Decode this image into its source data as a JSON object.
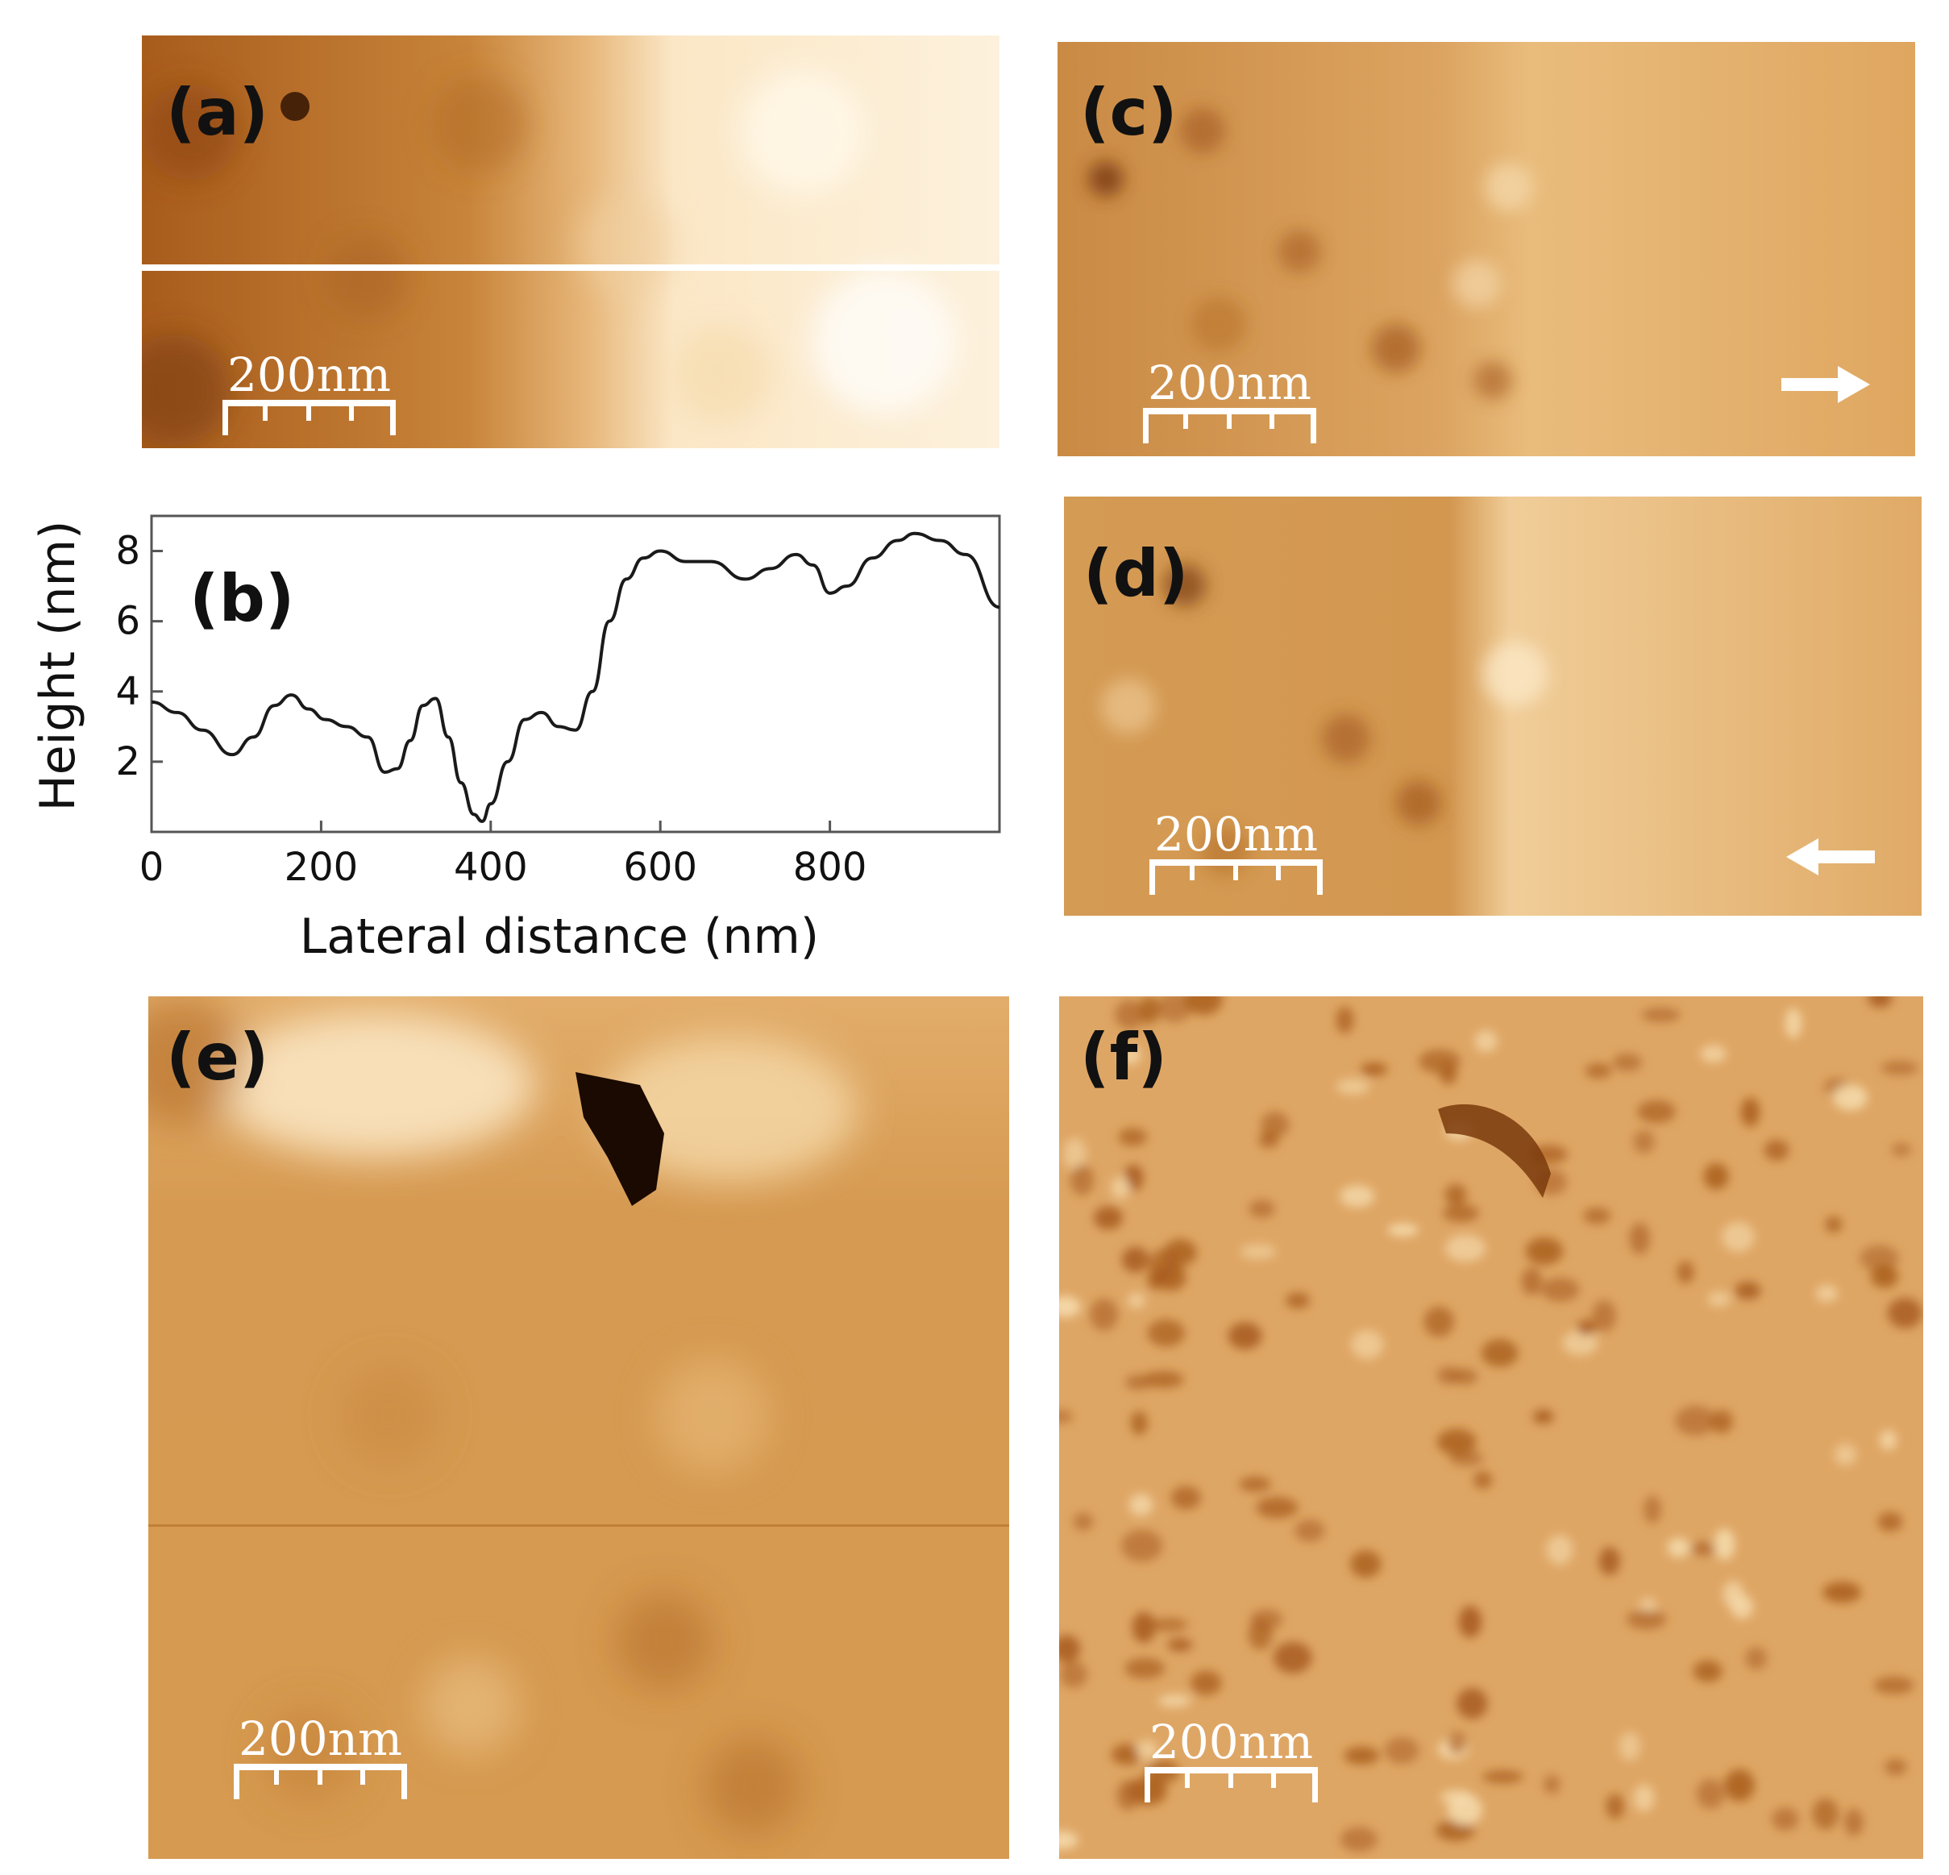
{
  "figure": {
    "panels": [
      {
        "id": "a",
        "label": "(a)",
        "kind": "AFM topography image, two stacked strips separated by a profile line",
        "scale_bar": "200nm"
      },
      {
        "id": "c",
        "label": "(c)",
        "kind": "AFM image, scan direction arrow right",
        "scale_bar": "200nm",
        "arrow": "right-arrow-icon"
      },
      {
        "id": "d",
        "label": "(d)",
        "kind": "AFM image, scan direction arrow left",
        "scale_bar": "200nm",
        "arrow": "left-arrow-icon"
      },
      {
        "id": "e",
        "label": "(e)",
        "kind": "AFM topography image",
        "scale_bar": "200nm"
      },
      {
        "id": "f",
        "label": "(f)",
        "kind": "AFM phase/friction image",
        "scale_bar": "200nm"
      }
    ],
    "colors": {
      "afm_dark": "#6e3206",
      "afm_mid": "#d49144",
      "afm_light": "#fdf3df",
      "arrow": "#ffffff"
    }
  },
  "chart_data": {
    "type": "line",
    "panel_label": "(b)",
    "title": "",
    "xlabel": "Lateral distance (nm)",
    "ylabel": "Height (nm)",
    "xlim": [
      0,
      1000
    ],
    "ylim": [
      0,
      9
    ],
    "xticks": [
      0,
      200,
      400,
      600,
      800
    ],
    "yticks": [
      2,
      4,
      6,
      8
    ],
    "grid": false,
    "legend": "none",
    "series": [
      {
        "x": [
          0,
          30,
          60,
          95,
          120,
          145,
          165,
          185,
          205,
          230,
          255,
          275,
          290,
          305,
          320,
          335,
          350,
          365,
          380,
          390,
          400,
          420,
          440,
          460,
          480,
          500,
          520,
          540,
          560,
          580,
          600,
          630,
          660,
          700,
          730,
          760,
          780,
          800,
          820,
          850,
          880,
          900,
          930,
          960,
          1000
        ],
        "y": [
          3.7,
          3.4,
          2.9,
          2.2,
          2.7,
          3.6,
          3.9,
          3.5,
          3.2,
          3.0,
          2.7,
          1.7,
          1.8,
          2.6,
          3.6,
          3.8,
          2.7,
          1.4,
          0.5,
          0.3,
          0.8,
          2.0,
          3.2,
          3.4,
          3.0,
          2.9,
          4.0,
          6.0,
          7.2,
          7.8,
          8.0,
          7.7,
          7.7,
          7.2,
          7.5,
          7.9,
          7.6,
          6.8,
          7.0,
          7.8,
          8.3,
          8.5,
          8.3,
          7.9,
          6.4
        ]
      }
    ]
  }
}
